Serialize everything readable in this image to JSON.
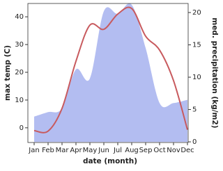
{
  "chart_data": {
    "type": "line-area",
    "x_label": "date (month)",
    "y_label": "max temp (C)",
    "y2_label": "med. precipitation (kg/m2)",
    "categories": [
      "Jan",
      "Feb",
      "Mar",
      "Apr",
      "May",
      "Jun",
      "Jul",
      "Aug",
      "Sep",
      "Oct",
      "Nov",
      "Dec"
    ],
    "series": [
      {
        "name": "max temp",
        "color": "#c85a5e",
        "values": [
          -1,
          -1.2,
          7,
          24,
          37,
          35.5,
          41,
          43,
          33,
          28,
          17,
          -0.7
        ]
      },
      {
        "name": "precipitation",
        "color": "#b3bdf1",
        "axis": "y2",
        "values": [
          3.9,
          4.6,
          5.2,
          11.2,
          9.8,
          20.2,
          19.8,
          21.2,
          14.5,
          6,
          6,
          6.5
        ]
      }
    ],
    "ylim": [
      -5.3,
      44.8
    ],
    "yticks": [
      0,
      10,
      20,
      30,
      40
    ],
    "y2lim": [
      -0.1,
      21.4
    ],
    "y2ticks": [
      0,
      5,
      10,
      15,
      20
    ]
  }
}
